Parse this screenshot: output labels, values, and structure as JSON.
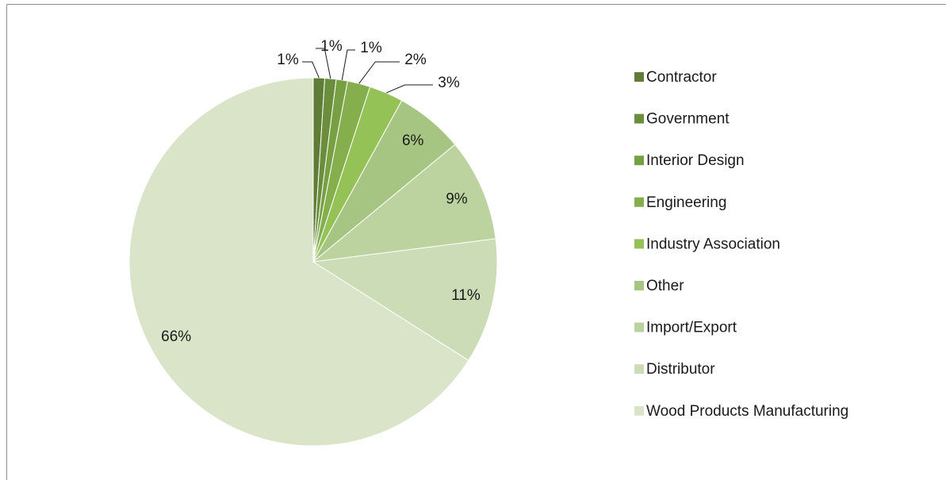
{
  "chart_data": {
    "type": "pie",
    "categories": [
      "Contractor",
      "Government",
      "Interior Design",
      "Engineering",
      "Industry Association",
      "Other",
      "Import/Export",
      "Distributor",
      "Wood Products Manufacturing"
    ],
    "values": [
      1,
      1,
      1,
      2,
      3,
      6,
      9,
      11,
      66
    ],
    "value_labels": [
      "1%",
      "1%",
      "1%",
      "2%",
      "3%",
      "6%",
      "9%",
      "11%",
      "66%"
    ],
    "colors": [
      "#5f7d36",
      "#6b8e3c",
      "#77a044",
      "#85ae4c",
      "#95c257",
      "#a7c582",
      "#bcd39f",
      "#cbdcb6",
      "#d9e4c8"
    ],
    "legend": "right"
  }
}
